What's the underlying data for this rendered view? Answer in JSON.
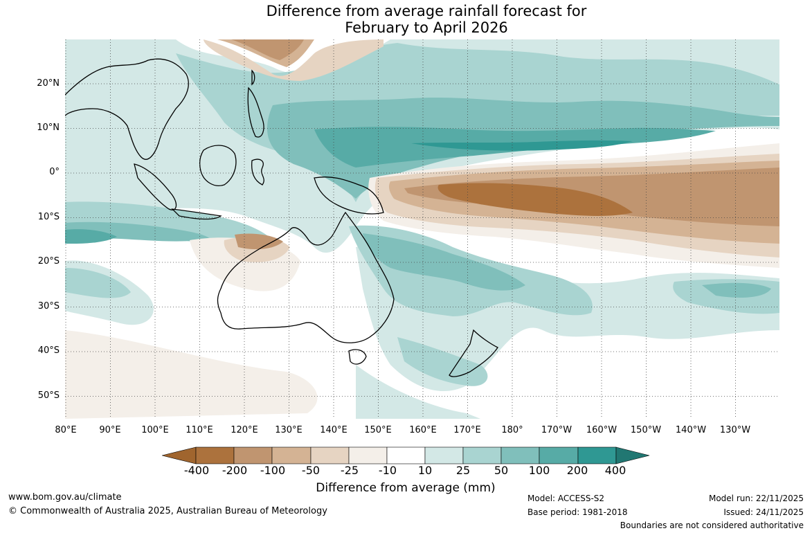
{
  "title": {
    "line1": "Difference from average rainfall forecast for",
    "line2": "February to April 2026"
  },
  "map": {
    "region": "Western Pacific, Maritime Continent and Australia",
    "lat_labels": [
      "20°N",
      "10°N",
      "0°",
      "10°S",
      "20°S",
      "30°S",
      "40°S",
      "50°S"
    ],
    "lon_labels": [
      "80°E",
      "90°E",
      "100°E",
      "110°E",
      "120°E",
      "130°E",
      "140°E",
      "150°E",
      "160°E",
      "170°E",
      "180°",
      "170°W",
      "160°W",
      "150°W",
      "140°W",
      "130°W"
    ]
  },
  "colorbar": {
    "labels": [
      "-400",
      "-200",
      "-100",
      "-50",
      "-25",
      "-10",
      "10",
      "25",
      "50",
      "100",
      "200",
      "400"
    ],
    "colors": {
      "lt400": "#a0652e",
      "m400_200": "#ac723d",
      "m200_100": "#c09570",
      "m100_50": "#d4b394",
      "m50_25": "#e6d4c2",
      "m25_10": "#f4efe9",
      "m10_10": "#ffffff",
      "p10_25": "#d3e8e6",
      "p25_50": "#a9d4d1",
      "p50_100": "#80bfbb",
      "p100_200": "#57aba6",
      "p200_400": "#2f9893",
      "gt400": "#217772"
    },
    "title": "Difference from average (mm)"
  },
  "footer": {
    "url": "www.bom.gov.au/climate",
    "copyright": "© Commonwealth of Australia 2025, Australian Bureau of Meteorology",
    "model": "Model: ACCESS-S2",
    "base_period": "Base period: 1981-2018",
    "model_run": "Model run: 22/11/2025",
    "issued": "Issued: 24/11/2025",
    "disclaimer": "Boundaries are not considered authoritative"
  }
}
